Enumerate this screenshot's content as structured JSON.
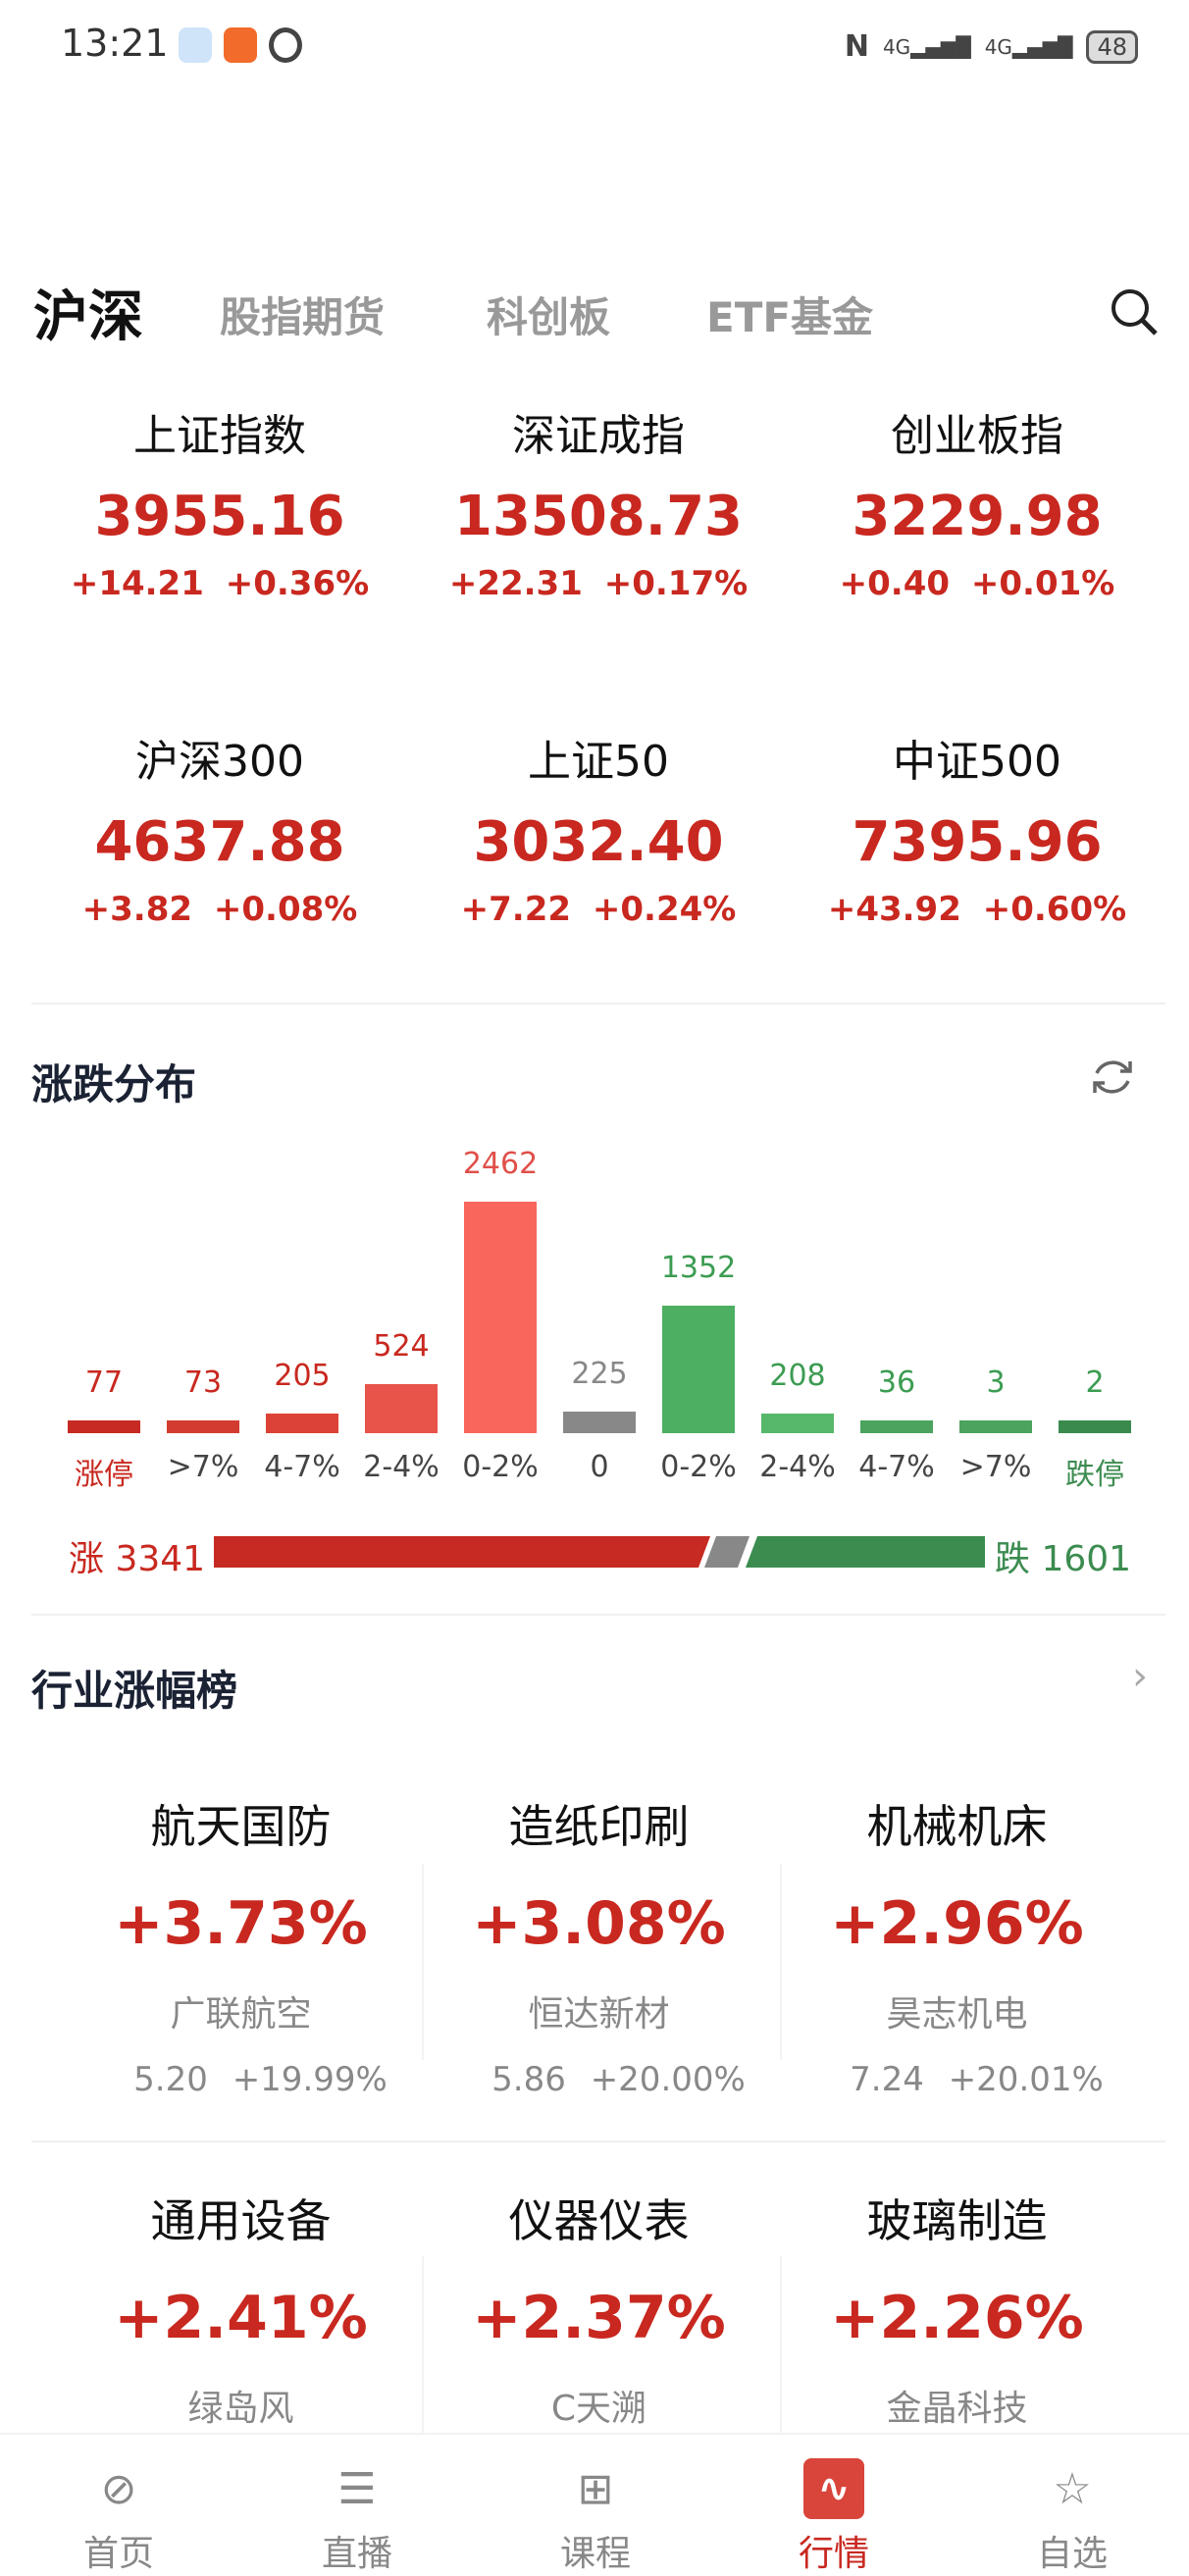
{
  "status_bar": {
    "time": "13:21",
    "battery": "48",
    "network": "4G"
  },
  "tabs": [
    {
      "label": "沪深",
      "active": true
    },
    {
      "label": "股指期货"
    },
    {
      "label": "科创板"
    },
    {
      "label": "ETF基金"
    }
  ],
  "indices": [
    {
      "name": "上证指数",
      "value": "3955.16",
      "change": "+14.21",
      "pct": "+0.36%"
    },
    {
      "name": "深证成指",
      "value": "13508.73",
      "change": "+22.31",
      "pct": "+0.17%"
    },
    {
      "name": "创业板指",
      "value": "3229.98",
      "change": "+0.40",
      "pct": "+0.01%"
    },
    {
      "name": "沪深300",
      "value": "4637.88",
      "change": "+3.82",
      "pct": "+0.08%"
    },
    {
      "name": "上证50",
      "value": "3032.40",
      "change": "+7.22",
      "pct": "+0.24%"
    },
    {
      "name": "中证500",
      "value": "7395.96",
      "change": "+43.92",
      "pct": "+0.60%"
    }
  ],
  "distribution": {
    "title": "涨跌分布",
    "up_label": "涨",
    "up_count": "3341",
    "down_label": "跌",
    "down_count": "1601"
  },
  "chart_data": {
    "type": "bar",
    "categories": [
      "涨停",
      ">7%",
      "4-7%",
      "2-4%",
      "0-2%",
      "0",
      "0-2%",
      "2-4%",
      "4-7%",
      ">7%",
      "跌停"
    ],
    "values": [
      77,
      73,
      205,
      524,
      2462,
      225,
      1352,
      208,
      36,
      3,
      2
    ],
    "colors": [
      "#c62a22",
      "#d23c30",
      "#dc4236",
      "#e8534a",
      "#f8665c",
      "#888888",
      "#4caf62",
      "#57b86a",
      "#4ba35e",
      "#4ba35e",
      "#3a8a4e"
    ],
    "label_colors": [
      "#c8281f",
      "#c8281f",
      "#c8281f",
      "#c8281f",
      "#e0504a",
      "#888888",
      "#3c9c52",
      "#3c9c52",
      "#3c9c52",
      "#3c9c52",
      "#3c9c52"
    ]
  },
  "industry": {
    "title": "行业涨幅榜",
    "items": [
      {
        "name": "航天国防",
        "pct": "+3.73%",
        "stock": "广联航空",
        "price": "5.20",
        "stock_pct": "+19.99%"
      },
      {
        "name": "造纸印刷",
        "pct": "+3.08%",
        "stock": "恒达新材",
        "price": "5.86",
        "stock_pct": "+20.00%"
      },
      {
        "name": "机械机床",
        "pct": "+2.96%",
        "stock": "昊志机电",
        "price": "7.24",
        "stock_pct": "+20.01%"
      },
      {
        "name": "通用设备",
        "pct": "+2.41%",
        "stock": "绿岛风"
      },
      {
        "name": "仪器仪表",
        "pct": "+2.37%",
        "stock": "C天溯"
      },
      {
        "name": "玻璃制造",
        "pct": "+2.26%",
        "stock": "金晶科技"
      }
    ]
  },
  "nav": [
    {
      "label": "首页",
      "icon": "compass-icon"
    },
    {
      "label": "直播",
      "icon": "chat-icon"
    },
    {
      "label": "课程",
      "icon": "grid-icon"
    },
    {
      "label": "行情",
      "icon": "chart-icon",
      "active": true
    },
    {
      "label": "自选",
      "icon": "star-icon"
    }
  ],
  "colors": {
    "up": "#c8281f",
    "down": "#3c8c50",
    "flat": "#888888"
  }
}
